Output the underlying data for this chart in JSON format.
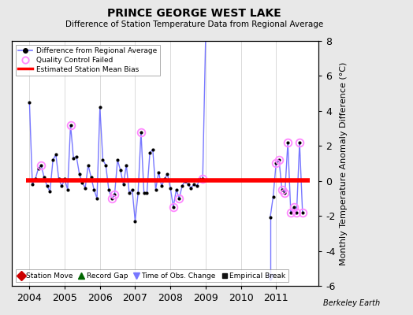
{
  "title": "PRINCE GEORGE WEST LAKE",
  "subtitle": "Difference of Station Temperature Data from Regional Average",
  "ylabel_right": "Monthly Temperature Anomaly Difference (°C)",
  "background_color": "#e8e8e8",
  "plot_bg_color": "#ffffff",
  "bias_value": 0.05,
  "bias_x_start": 2003.9,
  "bias_x_end": 2011.95,
  "ylim": [
    -6,
    8
  ],
  "xlim": [
    2003.5,
    2012.2
  ],
  "yticks": [
    -6,
    -4,
    -2,
    0,
    2,
    4,
    6,
    8
  ],
  "xticks": [
    2004,
    2005,
    2006,
    2007,
    2008,
    2009,
    2010,
    2011
  ],
  "line_color": "#7777ff",
  "marker_color": "#000000",
  "qc_failed_color": "#ff88ff",
  "bias_color": "#ff0000",
  "time_series": [
    [
      2004.0,
      4.5
    ],
    [
      2004.083,
      -0.2
    ],
    [
      2004.167,
      0.1
    ],
    [
      2004.25,
      0.7
    ],
    [
      2004.333,
      0.9
    ],
    [
      2004.417,
      0.2
    ],
    [
      2004.5,
      -0.3
    ],
    [
      2004.583,
      -0.6
    ],
    [
      2004.667,
      1.2
    ],
    [
      2004.75,
      1.5
    ],
    [
      2004.833,
      0.1
    ],
    [
      2004.917,
      -0.3
    ],
    [
      2005.0,
      0.1
    ],
    [
      2005.083,
      -0.5
    ],
    [
      2005.167,
      3.2
    ],
    [
      2005.25,
      1.3
    ],
    [
      2005.333,
      1.4
    ],
    [
      2005.417,
      0.4
    ],
    [
      2005.5,
      -0.1
    ],
    [
      2005.583,
      -0.4
    ],
    [
      2005.667,
      0.9
    ],
    [
      2005.75,
      0.2
    ],
    [
      2005.833,
      -0.5
    ],
    [
      2005.917,
      -1.0
    ],
    [
      2006.0,
      4.2
    ],
    [
      2006.083,
      1.2
    ],
    [
      2006.167,
      0.9
    ],
    [
      2006.25,
      -0.5
    ],
    [
      2006.333,
      -1.0
    ],
    [
      2006.417,
      -0.8
    ],
    [
      2006.5,
      1.2
    ],
    [
      2006.583,
      0.6
    ],
    [
      2006.667,
      -0.2
    ],
    [
      2006.75,
      0.9
    ],
    [
      2006.833,
      -0.7
    ],
    [
      2006.917,
      -0.5
    ],
    [
      2007.0,
      -2.3
    ],
    [
      2007.083,
      -0.7
    ],
    [
      2007.167,
      2.8
    ],
    [
      2007.25,
      -0.7
    ],
    [
      2007.333,
      -0.7
    ],
    [
      2007.417,
      1.6
    ],
    [
      2007.5,
      1.8
    ],
    [
      2007.583,
      -0.5
    ],
    [
      2007.667,
      0.5
    ],
    [
      2007.75,
      -0.3
    ],
    [
      2007.833,
      0.1
    ],
    [
      2007.917,
      0.4
    ],
    [
      2008.0,
      -0.4
    ],
    [
      2008.083,
      -1.5
    ],
    [
      2008.167,
      -0.5
    ],
    [
      2008.25,
      -1.0
    ],
    [
      2008.333,
      -0.3
    ],
    [
      2008.417,
      0.0
    ],
    [
      2008.5,
      -0.2
    ],
    [
      2008.583,
      -0.4
    ],
    [
      2008.667,
      -0.2
    ],
    [
      2008.75,
      -0.3
    ],
    [
      2008.833,
      0.1
    ],
    [
      2008.917,
      0.1
    ],
    [
      2009.0,
      8.2
    ],
    [
      2010.833,
      -2.1
    ],
    [
      2010.917,
      -0.9
    ],
    [
      2011.0,
      1.0
    ],
    [
      2011.083,
      1.2
    ],
    [
      2011.167,
      -0.5
    ],
    [
      2011.25,
      -0.7
    ],
    [
      2011.333,
      2.2
    ],
    [
      2011.417,
      -1.8
    ],
    [
      2011.5,
      -1.5
    ],
    [
      2011.583,
      -1.8
    ],
    [
      2011.667,
      2.2
    ],
    [
      2011.75,
      -1.8
    ]
  ],
  "qc_failed_points": [
    [
      2004.333,
      0.9
    ],
    [
      2005.167,
      3.2
    ],
    [
      2006.333,
      -1.0
    ],
    [
      2006.417,
      -0.8
    ],
    [
      2007.167,
      2.8
    ],
    [
      2008.083,
      -1.5
    ],
    [
      2008.25,
      -1.0
    ],
    [
      2008.917,
      0.1
    ],
    [
      2011.0,
      1.0
    ],
    [
      2011.083,
      1.2
    ],
    [
      2011.167,
      -0.5
    ],
    [
      2011.25,
      -0.7
    ],
    [
      2011.333,
      2.2
    ],
    [
      2011.417,
      -1.8
    ],
    [
      2011.5,
      -1.5
    ],
    [
      2011.583,
      -1.8
    ],
    [
      2011.667,
      2.2
    ],
    [
      2011.75,
      -1.8
    ]
  ],
  "obs_change_x": 2010.833,
  "obs_change_bottom": -5.5,
  "segment1_end": 2009.0,
  "segment2_start": 2010.833,
  "berkeley_earth_text": "Berkeley Earth"
}
